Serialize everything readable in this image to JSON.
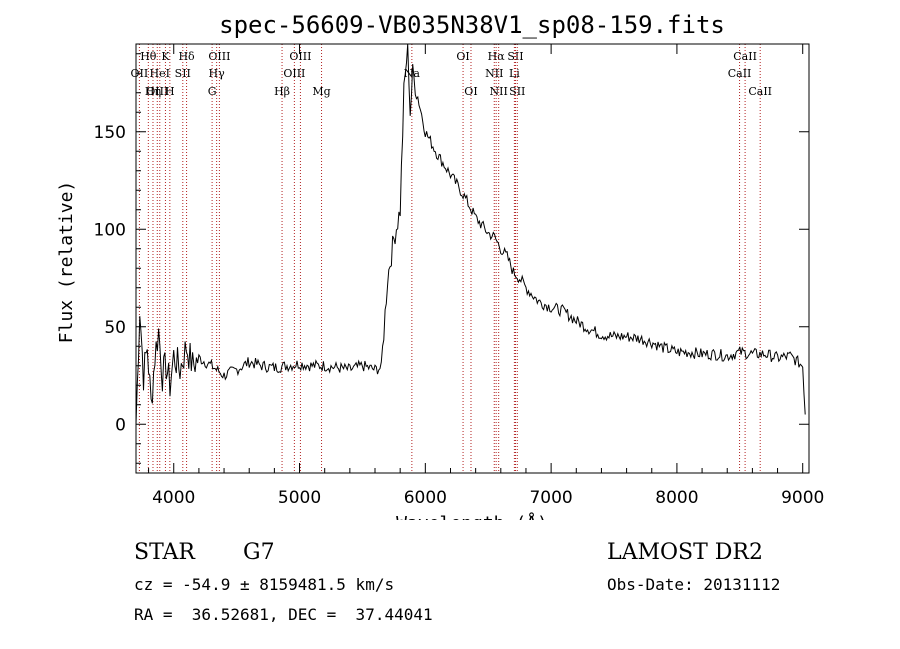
{
  "chart_data": {
    "type": "line",
    "title": "spec-56609-VB035N38V1_sp08-159.fits",
    "xlabel": "Wavelength (Å)",
    "ylabel": "Flux (relative)",
    "xlim": [
      3700,
      9050
    ],
    "ylim": [
      -25,
      195
    ],
    "x_ticks": [
      4000,
      5000,
      6000,
      7000,
      8000,
      9000
    ],
    "y_ticks": [
      0,
      50,
      100,
      150
    ],
    "grid": false,
    "series": [
      {
        "name": "spectrum",
        "x": [
          3700,
          3730,
          3760,
          3790,
          3820,
          3850,
          3880,
          3910,
          3940,
          3970,
          4000,
          4050,
          4100,
          4150,
          4200,
          4300,
          4400,
          4500,
          4600,
          4700,
          4800,
          4900,
          5000,
          5100,
          5200,
          5300,
          5400,
          5500,
          5600,
          5650,
          5700,
          5750,
          5800,
          5830,
          5860,
          5880,
          5900,
          5950,
          6000,
          6100,
          6200,
          6300,
          6400,
          6500,
          6550,
          6600,
          6650,
          6700,
          6750,
          6800,
          6900,
          7000,
          7100,
          7200,
          7300,
          7400,
          7500,
          7600,
          7700,
          7800,
          7900,
          8000,
          8100,
          8200,
          8300,
          8400,
          8500,
          8600,
          8700,
          8800,
          8900,
          9000,
          9020
        ],
        "y": [
          0,
          60,
          25,
          40,
          10,
          35,
          48,
          25,
          30,
          20,
          35,
          28,
          40,
          30,
          34,
          30,
          25,
          28,
          32,
          30,
          29,
          30,
          31,
          30,
          30,
          29,
          28,
          30,
          28,
          29,
          75,
          95,
          110,
          170,
          195,
          160,
          180,
          165,
          150,
          138,
          128,
          118,
          106,
          98,
          96,
          90,
          86,
          78,
          75,
          70,
          63,
          60,
          58,
          53,
          49,
          46,
          45,
          45,
          44,
          42,
          39,
          37,
          37,
          36,
          36,
          35,
          37,
          36,
          36,
          34,
          35,
          30,
          5
        ]
      }
    ],
    "line_markers": [
      {
        "label": "Hθ",
        "wavelength": 3798,
        "row": 0
      },
      {
        "label": "OII",
        "wavelength": 3727,
        "row": 1
      },
      {
        "label": "OIII",
        "wavelength": 3869,
        "row": 2
      },
      {
        "label": "HeI",
        "wavelength": 3889,
        "row": 1
      },
      {
        "label": "Hη",
        "wavelength": 3835,
        "row": 2
      },
      {
        "label": "K",
        "wavelength": 3934,
        "row": 0
      },
      {
        "label": "H",
        "wavelength": 3969,
        "row": 2
      },
      {
        "label": "Hδ",
        "wavelength": 4102,
        "row": 0
      },
      {
        "label": "SII",
        "wavelength": 4072,
        "row": 1
      },
      {
        "label": "OIII",
        "wavelength": 4363,
        "row": 0
      },
      {
        "label": "Hγ",
        "wavelength": 4341,
        "row": 1
      },
      {
        "label": "G",
        "wavelength": 4305,
        "row": 2
      },
      {
        "label": "Hβ",
        "wavelength": 4861,
        "row": 2
      },
      {
        "label": "OIII",
        "wavelength": 5007,
        "row": 0
      },
      {
        "label": "OIII",
        "wavelength": 4959,
        "row": 1
      },
      {
        "label": "Mg",
        "wavelength": 5175,
        "row": 2
      },
      {
        "label": "Na",
        "wavelength": 5893,
        "row": 1
      },
      {
        "label": "OI",
        "wavelength": 6300,
        "row": 0
      },
      {
        "label": "OI",
        "wavelength": 6363,
        "row": 2
      },
      {
        "label": "Hα",
        "wavelength": 6563,
        "row": 0
      },
      {
        "label": "NII",
        "wavelength": 6548,
        "row": 1
      },
      {
        "label": "NII",
        "wavelength": 6583,
        "row": 2
      },
      {
        "label": "SII",
        "wavelength": 6717,
        "row": 0
      },
      {
        "label": "Li",
        "wavelength": 6708,
        "row": 1
      },
      {
        "label": "SII",
        "wavelength": 6731,
        "row": 2
      },
      {
        "label": "CaII",
        "wavelength": 8542,
        "row": 0
      },
      {
        "label": "CaII",
        "wavelength": 8498,
        "row": 1
      },
      {
        "label": "CaII",
        "wavelength": 8662,
        "row": 2
      }
    ]
  },
  "info": {
    "object_class": "STAR",
    "subclass": "G7",
    "survey": "LAMOST DR2",
    "redshift_line": "cz = -54.9 ± 8159481.5 km/s",
    "obs_date_line": "Obs-Date: 20131112",
    "coords_line": "RA =  36.52681, DEC =  37.44041"
  }
}
